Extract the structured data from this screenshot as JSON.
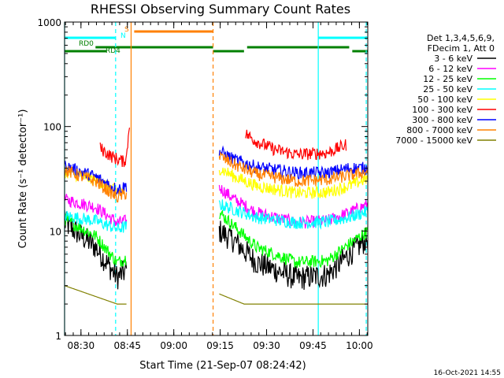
{
  "chart_data": {
    "type": "line",
    "title": "RHESSI Observing Summary Count Rates",
    "xlabel": "Start Time (21-Sep-07 08:24:42)",
    "ylabel": "Count Rate (s⁻¹ detector⁻¹)",
    "x_unit": "minutes after 08:24:42",
    "xlim": [
      0,
      98
    ],
    "ylim": [
      1,
      1000
    ],
    "yscale": "log",
    "x_ticks": [
      {
        "x": 5.3,
        "label": "08:30"
      },
      {
        "x": 20.3,
        "label": "08:45"
      },
      {
        "x": 35.3,
        "label": "09:00"
      },
      {
        "x": 50.3,
        "label": "09:15"
      },
      {
        "x": 65.3,
        "label": "09:30"
      },
      {
        "x": 80.3,
        "label": "09:45"
      },
      {
        "x": 95.3,
        "label": "10:00"
      }
    ],
    "y_ticks": [
      {
        "y": 1,
        "label": "1"
      },
      {
        "y": 10,
        "label": "10"
      },
      {
        "y": 100,
        "label": "100"
      },
      {
        "y": 1000,
        "label": "1000"
      }
    ],
    "legend": {
      "header": [
        "Det 1,3,4,5,6,9,",
        "FDecim 1, Att 0"
      ],
      "placement": "right"
    },
    "series": [
      {
        "name": "3 - 6 keV",
        "color": "#000000",
        "p1": [
          [
            0,
            12
          ],
          [
            10,
            7
          ],
          [
            17,
            3.6
          ],
          [
            20,
            4.2
          ]
        ],
        "p2": [
          [
            50,
            10
          ],
          [
            55,
            8
          ],
          [
            62,
            5
          ],
          [
            75,
            3.5
          ],
          [
            85,
            3.8
          ],
          [
            92,
            6
          ],
          [
            98,
            8.5
          ]
        ]
      },
      {
        "name": "6 - 12 keV",
        "color": "#ff00ff",
        "p1": [
          [
            0,
            20
          ],
          [
            10,
            17
          ],
          [
            17,
            12
          ],
          [
            20,
            12.5
          ]
        ],
        "p2": [
          [
            50,
            26
          ],
          [
            55,
            20
          ],
          [
            62,
            15
          ],
          [
            75,
            12
          ],
          [
            85,
            12.5
          ],
          [
            92,
            15
          ],
          [
            98,
            18
          ]
        ]
      },
      {
        "name": "12 - 25 keV",
        "color": "#00ff00",
        "p1": [
          [
            0,
            13
          ],
          [
            10,
            9
          ],
          [
            17,
            5
          ],
          [
            20,
            5.5
          ]
        ],
        "p2": [
          [
            50,
            15
          ],
          [
            55,
            11
          ],
          [
            62,
            7
          ],
          [
            75,
            5
          ],
          [
            85,
            5.2
          ],
          [
            92,
            7.5
          ],
          [
            98,
            10
          ]
        ]
      },
      {
        "name": "25 - 50 keV",
        "color": "#00ffff",
        "p1": [
          [
            0,
            14
          ],
          [
            10,
            12.5
          ],
          [
            17,
            10.5
          ],
          [
            20,
            11
          ]
        ],
        "p2": [
          [
            50,
            18
          ],
          [
            55,
            16
          ],
          [
            62,
            13.5
          ],
          [
            75,
            12
          ],
          [
            85,
            12.2
          ],
          [
            92,
            13.5
          ],
          [
            98,
            15.5
          ]
        ]
      },
      {
        "name": "50 - 100 keV",
        "color": "#ffff00",
        "p1": [
          [
            0,
            37
          ],
          [
            10,
            31
          ],
          [
            17,
            24
          ],
          [
            20,
            25
          ]
        ],
        "p2": [
          [
            50,
            40
          ],
          [
            55,
            33
          ],
          [
            62,
            27
          ],
          [
            75,
            23
          ],
          [
            85,
            23.5
          ],
          [
            92,
            27
          ],
          [
            98,
            32
          ]
        ]
      },
      {
        "name": "100 - 300 keV",
        "color": "#ff0000",
        "p1": [
          [
            11.5,
            62
          ],
          [
            15,
            52
          ],
          [
            19,
            46
          ],
          [
            20,
            50
          ],
          [
            21,
            110
          ]
        ],
        "p2": [
          [
            58.5,
            85
          ],
          [
            62,
            72
          ],
          [
            68,
            60
          ],
          [
            75,
            54
          ],
          [
            85,
            56
          ],
          [
            91,
            67
          ]
        ]
      },
      {
        "name": "300 - 800 keV",
        "color": "#0000ff",
        "p1": [
          [
            0,
            42
          ],
          [
            10,
            33
          ],
          [
            17,
            25
          ],
          [
            20,
            27
          ]
        ],
        "p2": [
          [
            50,
            58
          ],
          [
            55,
            48
          ],
          [
            62,
            41
          ],
          [
            75,
            36
          ],
          [
            85,
            36
          ],
          [
            92,
            40
          ],
          [
            98,
            40
          ]
        ]
      },
      {
        "name": "800 - 7000 keV",
        "color": "#ff8000",
        "p1": [
          [
            0,
            38
          ],
          [
            10,
            30
          ],
          [
            17,
            21
          ],
          [
            20,
            23
          ]
        ],
        "p2": [
          [
            50,
            52
          ],
          [
            55,
            43
          ],
          [
            62,
            35
          ],
          [
            75,
            30
          ],
          [
            85,
            31
          ],
          [
            92,
            34
          ],
          [
            98,
            37
          ]
        ]
      },
      {
        "name": "7000 - 15000 keV",
        "color": "#808000",
        "p1": [
          [
            0,
            3
          ],
          [
            17,
            2
          ],
          [
            20,
            2
          ]
        ],
        "p2": [
          [
            50,
            2.5
          ],
          [
            58,
            2
          ],
          [
            90,
            2
          ],
          [
            98,
            2
          ]
        ]
      }
    ],
    "state_bars": [
      {
        "label": "S",
        "color": "#ff8000",
        "segments": [
          [
            22.5,
            48
          ]
        ]
      },
      {
        "label": "N",
        "color": "#00ffff",
        "segments": [
          [
            0,
            16.5
          ],
          [
            82,
            98
          ]
        ]
      },
      {
        "label": "RD0",
        "color": "#008000",
        "segments": [
          [
            10,
            48
          ],
          [
            59,
            92
          ]
        ]
      },
      {
        "label": "RD4",
        "color": "#008000",
        "segments": [
          [
            0,
            13.5
          ],
          [
            48,
            58
          ],
          [
            93,
            98
          ]
        ]
      }
    ],
    "markers": [
      {
        "x": 0,
        "color": "#00ffff",
        "style": "solid"
      },
      {
        "x": 16.5,
        "color": "#00ffff",
        "style": "dashed"
      },
      {
        "x": 21.5,
        "color": "#ff8000",
        "style": "solid"
      },
      {
        "x": 48,
        "color": "#ff8000",
        "style": "dashed"
      },
      {
        "x": 82,
        "color": "#00ffff",
        "style": "solid"
      },
      {
        "x": 97.5,
        "color": "#00ffff",
        "style": "dashed"
      }
    ],
    "timestamp": "16-Oct-2021 14:55"
  }
}
